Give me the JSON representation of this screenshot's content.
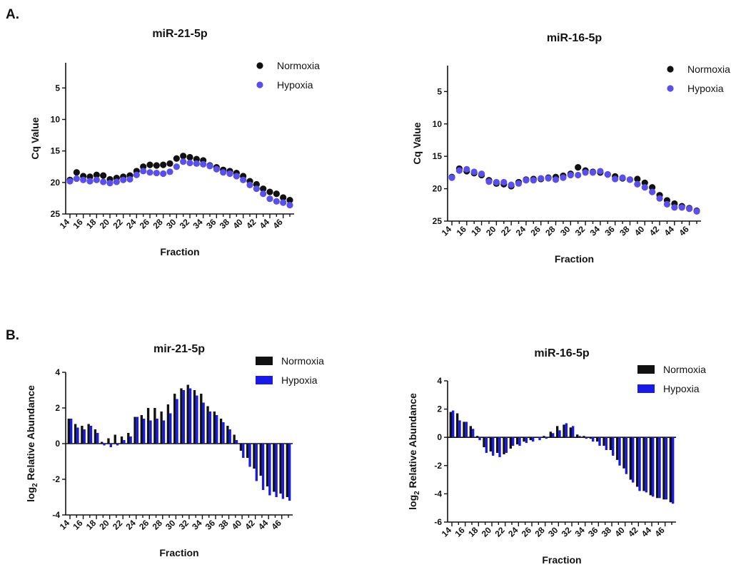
{
  "figure": {
    "panel_a_label": "A.",
    "panel_b_label": "B."
  },
  "colors": {
    "normoxia_dot": "#111111",
    "hypoxia_dot": "#5a4fe6",
    "normoxia_bar": "#111111",
    "hypoxia_bar": "#1a1ae6"
  },
  "chart_data": [
    {
      "id": "a1",
      "type": "scatter",
      "title": "miR-21-5p",
      "xlabel": "Fraction",
      "ylabel": "Cq Value",
      "y_inverted": true,
      "ylim": [
        25,
        1
      ],
      "yticks": [
        5,
        10,
        15,
        20,
        25
      ],
      "xlim": [
        14,
        47
      ],
      "xticks": [
        14,
        16,
        18,
        20,
        22,
        24,
        26,
        28,
        30,
        32,
        34,
        36,
        38,
        40,
        42,
        44,
        46
      ],
      "legend_position": "top-right",
      "x": [
        14,
        15,
        16,
        17,
        18,
        19,
        20,
        21,
        22,
        23,
        24,
        25,
        26,
        27,
        28,
        29,
        30,
        31,
        32,
        33,
        34,
        35,
        36,
        37,
        38,
        39,
        40,
        41,
        42,
        43,
        44,
        45,
        46,
        47
      ],
      "series": [
        {
          "name": "Normoxia",
          "color": "#111111",
          "values": [
            19.6,
            18.4,
            19.0,
            19.1,
            18.8,
            18.9,
            19.5,
            19.3,
            19.1,
            18.9,
            18.2,
            17.5,
            17.2,
            17.3,
            17.2,
            17.0,
            16.2,
            15.8,
            16.0,
            16.3,
            16.5,
            17.3,
            17.6,
            18.0,
            18.2,
            18.5,
            19.0,
            19.8,
            20.3,
            21.0,
            21.5,
            21.8,
            22.4,
            22.8
          ]
        },
        {
          "name": "Hypoxia",
          "color": "#5a4fe6",
          "values": [
            19.8,
            19.4,
            19.6,
            19.8,
            19.6,
            19.9,
            20.1,
            19.9,
            19.6,
            19.5,
            18.8,
            18.2,
            18.4,
            18.5,
            18.6,
            18.3,
            17.5,
            16.7,
            16.9,
            17.0,
            17.1,
            17.4,
            17.9,
            18.4,
            18.6,
            19.0,
            19.6,
            20.4,
            21.0,
            21.8,
            22.6,
            23.0,
            23.2,
            23.6
          ]
        }
      ]
    },
    {
      "id": "a2",
      "type": "scatter",
      "title": "miR-16-5p",
      "xlabel": "Fraction",
      "ylabel": "Cq Value",
      "y_inverted": true,
      "ylim": [
        25,
        1
      ],
      "yticks": [
        5,
        10,
        15,
        20,
        25
      ],
      "xlim": [
        14,
        47
      ],
      "xticks": [
        14,
        16,
        18,
        20,
        22,
        24,
        26,
        28,
        30,
        32,
        34,
        36,
        38,
        40,
        42,
        44,
        46
      ],
      "legend_position": "top-right",
      "x": [
        14,
        15,
        16,
        17,
        18,
        19,
        20,
        21,
        22,
        23,
        24,
        25,
        26,
        27,
        28,
        29,
        30,
        31,
        32,
        33,
        34,
        35,
        36,
        37,
        38,
        39,
        40,
        41,
        42,
        43,
        44,
        45,
        46,
        47
      ],
      "series": [
        {
          "name": "Normoxia",
          "color": "#111111",
          "values": [
            18.2,
            16.9,
            17.3,
            17.6,
            17.9,
            18.7,
            19.2,
            19.3,
            19.6,
            19.0,
            18.6,
            18.5,
            18.5,
            18.3,
            18.2,
            18.0,
            17.7,
            16.7,
            17.2,
            17.4,
            17.5,
            17.8,
            18.1,
            18.4,
            18.6,
            18.5,
            19.1,
            19.8,
            21.0,
            21.8,
            22.3,
            22.7,
            23.0,
            23.4
          ]
        },
        {
          "name": "Hypoxia",
          "color": "#5a4fe6",
          "values": [
            18.3,
            17.2,
            17.0,
            17.4,
            17.7,
            18.9,
            19.0,
            19.0,
            19.4,
            19.2,
            18.7,
            18.7,
            18.4,
            18.4,
            18.6,
            18.3,
            17.9,
            17.9,
            17.5,
            17.5,
            17.3,
            17.8,
            18.5,
            18.3,
            18.6,
            19.3,
            19.8,
            20.5,
            21.5,
            22.4,
            22.9,
            22.9,
            23.1,
            23.5
          ]
        }
      ]
    },
    {
      "id": "b1",
      "type": "bar",
      "title": "mir-21-5p",
      "xlabel": "Fraction",
      "ylabel": "log2 Relative Abundance",
      "ylabel_main": "log",
      "ylabel_sub": "2",
      "ylabel_rest": " Relative Abundance",
      "ylim": [
        -4,
        4
      ],
      "yticks": [
        -4,
        -2,
        0,
        2,
        4
      ],
      "xlim": [
        14,
        47
      ],
      "xticks": [
        14,
        16,
        18,
        20,
        22,
        24,
        26,
        28,
        30,
        32,
        34,
        36,
        38,
        40,
        42,
        44,
        46
      ],
      "legend_position": "top-right",
      "x": [
        14,
        15,
        16,
        17,
        18,
        19,
        20,
        21,
        22,
        23,
        24,
        25,
        26,
        27,
        28,
        29,
        30,
        31,
        32,
        33,
        34,
        35,
        36,
        37,
        38,
        39,
        40,
        41,
        42,
        43,
        44,
        45,
        46,
        47
      ],
      "series": [
        {
          "name": "Normoxia",
          "color": "#111111",
          "values": [
            1.4,
            1.1,
            1.0,
            1.1,
            0.8,
            0.1,
            0.3,
            0.5,
            0.4,
            0.6,
            1.5,
            1.6,
            2.0,
            2.0,
            1.8,
            2.2,
            2.8,
            3.1,
            3.3,
            3.0,
            2.8,
            2.1,
            1.8,
            1.4,
            1.0,
            0.5,
            -0.4,
            -0.8,
            -1.4,
            -1.8,
            -2.4,
            -2.7,
            -2.8,
            -3.0
          ]
        },
        {
          "name": "Hypoxia",
          "color": "#1a1ae6",
          "values": [
            1.4,
            0.9,
            0.8,
            1.0,
            0.6,
            -0.1,
            -0.2,
            -0.1,
            0.2,
            0.4,
            1.5,
            1.4,
            1.3,
            1.4,
            1.3,
            1.7,
            2.5,
            3.0,
            3.1,
            2.7,
            2.3,
            1.8,
            1.6,
            1.2,
            0.8,
            0.2,
            -0.8,
            -1.3,
            -2.1,
            -2.6,
            -2.9,
            -3.0,
            -3.1,
            -3.2
          ]
        }
      ]
    },
    {
      "id": "b2",
      "type": "bar",
      "title": "miR-16-5p",
      "xlabel": "Fraction",
      "ylabel": "log2 Relative Abundance",
      "ylabel_main": "log",
      "ylabel_sub": "2",
      "ylabel_rest": " Relative Abundance",
      "ylim": [
        -6,
        4
      ],
      "yticks": [
        -6,
        -4,
        -2,
        0,
        2,
        4
      ],
      "xlim": [
        14,
        47
      ],
      "xticks": [
        14,
        16,
        18,
        20,
        22,
        24,
        26,
        28,
        30,
        32,
        34,
        36,
        38,
        40,
        42,
        44,
        46
      ],
      "legend_position": "top-right",
      "x": [
        14,
        15,
        16,
        17,
        18,
        19,
        20,
        21,
        22,
        23,
        24,
        25,
        26,
        27,
        28,
        29,
        30,
        31,
        32,
        33,
        34,
        35,
        36,
        37,
        38,
        39,
        40,
        41,
        42,
        43,
        44,
        45,
        46,
        47
      ],
      "series": [
        {
          "name": "Normoxia",
          "color": "#111111",
          "values": [
            1.8,
            1.7,
            1.1,
            0.8,
            0.1,
            -0.7,
            -1.0,
            -1.1,
            -1.2,
            -0.8,
            -0.5,
            -0.3,
            -0.2,
            0.0,
            0.1,
            0.4,
            0.8,
            0.9,
            0.7,
            0.2,
            0.1,
            -0.1,
            -0.3,
            -0.6,
            -0.9,
            -1.6,
            -2.2,
            -3.0,
            -3.5,
            -3.8,
            -4.1,
            -4.3,
            -4.4,
            -4.6
          ]
        },
        {
          "name": "Hypoxia",
          "color": "#1a1ae6",
          "values": [
            1.9,
            1.2,
            1.1,
            0.6,
            -0.2,
            -1.1,
            -1.3,
            -1.4,
            -1.1,
            -0.6,
            -0.6,
            -0.4,
            -0.3,
            -0.2,
            -0.1,
            0.3,
            0.5,
            1.0,
            0.8,
            0.1,
            -0.1,
            -0.3,
            -0.6,
            -0.9,
            -1.3,
            -2.0,
            -2.6,
            -3.2,
            -3.8,
            -3.9,
            -4.2,
            -4.3,
            -4.4,
            -4.7
          ]
        }
      ]
    }
  ]
}
